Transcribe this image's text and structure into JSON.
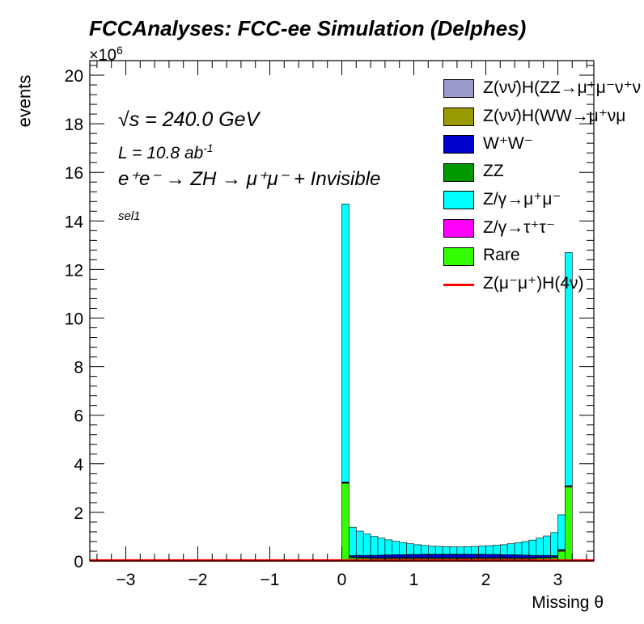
{
  "title": "FCCAnalyses: FCC-ee Simulation (Delphes)",
  "exponent_base": "×10",
  "exponent_power": "6",
  "annotations": {
    "sqrt_s_symbol": "√s",
    "sqrt_s_value": " = 240.0 GeV",
    "lumi_text": "L = 10.8 ab",
    "lumi_exp": "-1",
    "process": "e⁺e⁻ → ZH → μ⁺μ⁻ + Invisible",
    "selection": "sel1"
  },
  "legend": [
    {
      "label": "Z(νν̄)H(ZZ→μ⁺μ⁻ν⁺ν",
      "color": "#9999cc",
      "kind": "box"
    },
    {
      "label": "Z(νν̄)H(WW→μ⁺νμ",
      "color": "#999900",
      "kind": "box"
    },
    {
      "label": "W⁺W⁻",
      "color": "#0000cc",
      "kind": "box"
    },
    {
      "label": "ZZ",
      "color": "#009900",
      "kind": "box"
    },
    {
      "label": "Z/γ→μ⁺μ⁻",
      "color": "#00ffff",
      "kind": "box"
    },
    {
      "label": "Z/γ→τ⁺τ⁻",
      "color": "#ff00ff",
      "kind": "box"
    },
    {
      "label": "Rare",
      "color": "#33ff00",
      "kind": "box"
    },
    {
      "label": "Z(μ⁻μ⁺)H(4ν)",
      "color": "#ff0000",
      "kind": "line"
    }
  ],
  "chart_data": {
    "type": "bar",
    "stacked": true,
    "histogram": true,
    "xlabel": "Missing θ",
    "ylabel": "events",
    "xlim": [
      -3.5,
      3.5
    ],
    "ylim": [
      0,
      20.6
    ],
    "y_scale_factor": 1000000,
    "xticks": [
      -3,
      -2,
      -1,
      0,
      1,
      2,
      3
    ],
    "yticks": [
      0,
      2,
      4,
      6,
      8,
      10,
      12,
      14,
      16,
      18,
      20
    ],
    "bin_width": 0.1,
    "bins_x_start": [
      0.0,
      0.1,
      0.2,
      0.3,
      0.4,
      0.5,
      0.6,
      0.7,
      0.8,
      0.9,
      1.0,
      1.1,
      1.2,
      1.3,
      1.4,
      1.5,
      1.6,
      1.7,
      1.8,
      1.9,
      2.0,
      2.1,
      2.2,
      2.3,
      2.4,
      2.5,
      2.6,
      2.7,
      2.8,
      2.9,
      3.0,
      3.1
    ],
    "series": [
      {
        "name": "Rare",
        "color": "#33ff00",
        "values": [
          3.2,
          0.13,
          0.12,
          0.11,
          0.1,
          0.1,
          0.1,
          0.1,
          0.1,
          0.1,
          0.1,
          0.1,
          0.1,
          0.1,
          0.1,
          0.1,
          0.1,
          0.1,
          0.1,
          0.1,
          0.1,
          0.1,
          0.1,
          0.1,
          0.1,
          0.1,
          0.1,
          0.11,
          0.12,
          0.13,
          0.4,
          3.05
        ]
      },
      {
        "name": "ZZ",
        "color": "#009900",
        "values": [
          0.02,
          0.03,
          0.03,
          0.03,
          0.03,
          0.03,
          0.03,
          0.03,
          0.03,
          0.03,
          0.03,
          0.03,
          0.03,
          0.03,
          0.03,
          0.03,
          0.03,
          0.03,
          0.03,
          0.03,
          0.03,
          0.03,
          0.03,
          0.03,
          0.03,
          0.03,
          0.03,
          0.03,
          0.03,
          0.03,
          0.03,
          0.02
        ]
      },
      {
        "name": "W⁺W⁻",
        "color": "#0000cc",
        "values": [
          0.03,
          0.06,
          0.08,
          0.09,
          0.1,
          0.11,
          0.12,
          0.13,
          0.13,
          0.14,
          0.14,
          0.15,
          0.15,
          0.15,
          0.15,
          0.15,
          0.15,
          0.15,
          0.15,
          0.15,
          0.14,
          0.14,
          0.13,
          0.13,
          0.12,
          0.11,
          0.1,
          0.09,
          0.08,
          0.06,
          0.04,
          0.03
        ]
      },
      {
        "name": "Z/γ→μ⁺μ⁻",
        "color": "#00ffff",
        "values": [
          11.45,
          1.17,
          1.0,
          0.88,
          0.78,
          0.7,
          0.62,
          0.55,
          0.5,
          0.44,
          0.4,
          0.36,
          0.33,
          0.32,
          0.31,
          0.3,
          0.3,
          0.31,
          0.32,
          0.33,
          0.36,
          0.38,
          0.41,
          0.45,
          0.5,
          0.56,
          0.63,
          0.71,
          0.8,
          0.95,
          1.43,
          9.6
        ]
      }
    ],
    "signal_line": {
      "name": "Z(μ⁻μ⁺)H(4ν)",
      "color": "#ff0000",
      "value": 0.02
    }
  }
}
